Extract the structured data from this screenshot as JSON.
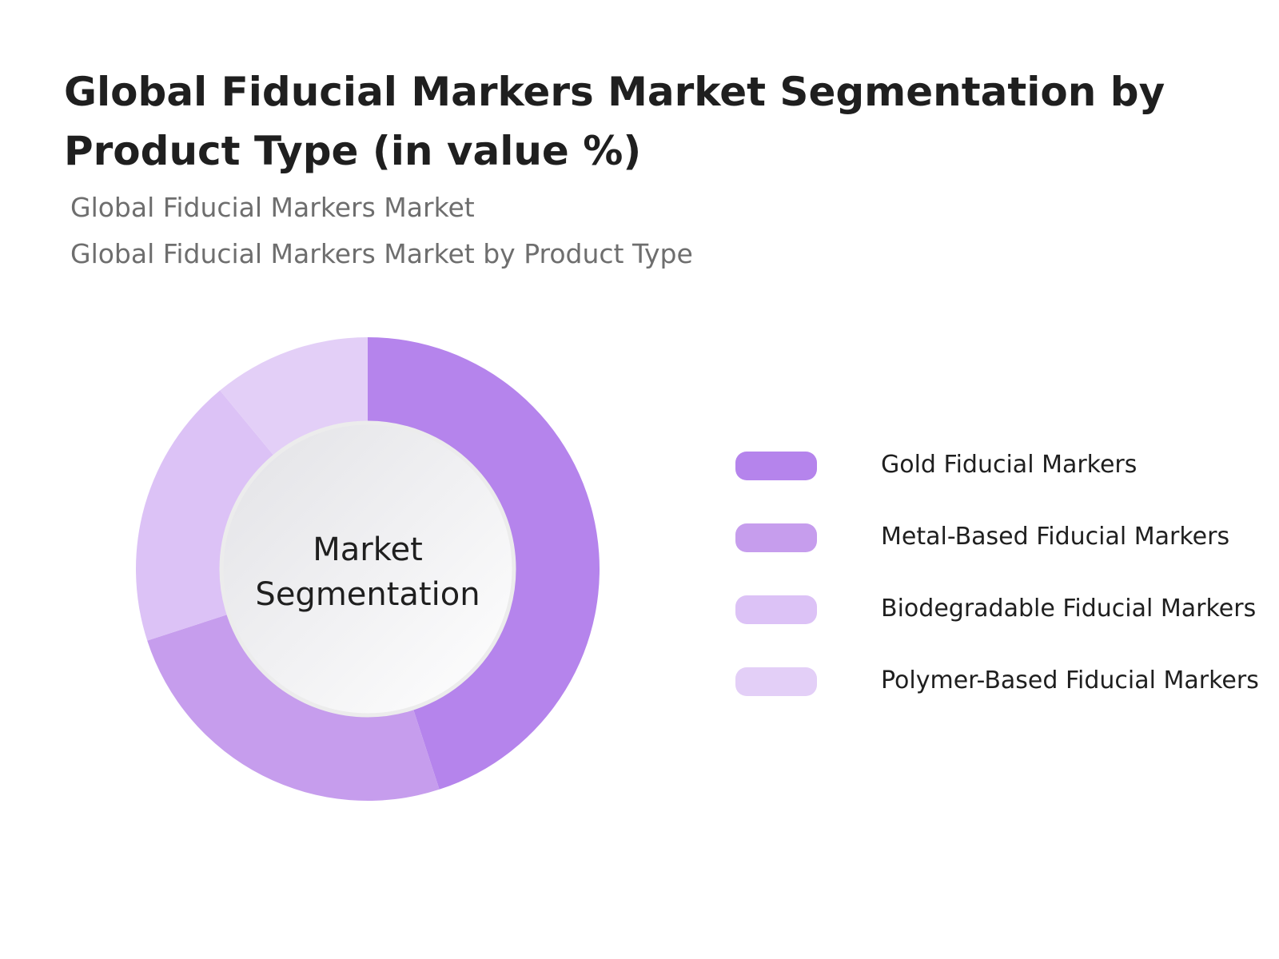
{
  "header": {
    "title": "Global Fiducial Markers Market Segmentation by Product Type (in value %)",
    "subtitle_1": "Global Fiducial Markers Market",
    "subtitle_2": "Global Fiducial Markers Market by Product Type"
  },
  "chart_data": {
    "type": "pie",
    "variant": "donut",
    "center_label_line_1": "Market",
    "center_label_line_2": "Segmentation",
    "categories": [
      "Gold Fiducial Markers",
      "Metal-Based Fiducial Markers",
      "Biodegradable Fiducial Markers",
      "Polymer-Based Fiducial Markers"
    ],
    "values": [
      45,
      25,
      19,
      11
    ],
    "unit": "%",
    "colors": [
      "#b584ec",
      "#c69ded",
      "#dcc2f6",
      "#e3cff7"
    ],
    "legend_position": "right"
  }
}
